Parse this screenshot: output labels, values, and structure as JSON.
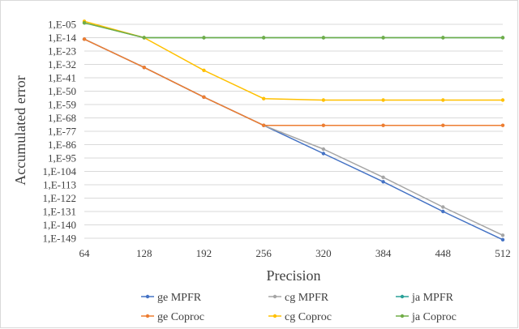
{
  "chart_data": {
    "type": "line",
    "title": "",
    "xlabel": "Precision",
    "ylabel": "Accumulated error",
    "y_scale": "log",
    "grid": true,
    "legend_position": "bottom",
    "x": [
      64,
      128,
      192,
      256,
      320,
      384,
      448,
      512
    ],
    "x_tick_labels": [
      "64",
      "128",
      "192",
      "256",
      "320",
      "384",
      "448",
      "512"
    ],
    "y_tick_labels": [
      "1,E-05",
      "1,E-14",
      "1,E-23",
      "1,E-32",
      "1,E-41",
      "1,E-50",
      "1,E-59",
      "1,E-68",
      "1,E-77",
      "1,E-86",
      "1,E-95",
      "1,E-104",
      "1,E-113",
      "1,E-122",
      "1,E-131",
      "1,E-140",
      "1,E-149"
    ],
    "y_tick_exponents": [
      -5,
      -14,
      -23,
      -32,
      -41,
      -50,
      -59,
      -68,
      -77,
      -86,
      -95,
      -104,
      -113,
      -122,
      -131,
      -140,
      -149
    ],
    "y_range_exponent": [
      -149,
      -5
    ],
    "series": [
      {
        "name": "ge MPFR",
        "color": "#4472c4",
        "log10_values": [
          -15,
          -34,
          -54,
          -73,
          -92,
          -111,
          -131,
          -150
        ]
      },
      {
        "name": "cg MPFR",
        "color": "#a5a5a5",
        "log10_values": [
          -15,
          -34,
          -54,
          -73,
          -89,
          -108,
          -128,
          -147
        ]
      },
      {
        "name": "ja MPFR",
        "color": "#2aa198",
        "log10_values": [
          -4,
          -14,
          -14,
          -14,
          -14,
          -14,
          -14,
          -14
        ]
      },
      {
        "name": "ge Coproc",
        "color": "#ed7d31",
        "log10_values": [
          -15,
          -34,
          -54,
          -73,
          -73,
          -73,
          -73,
          -73
        ]
      },
      {
        "name": "cg Coproc",
        "color": "#ffc000",
        "log10_values": [
          -3,
          -14,
          -36,
          -55,
          -56,
          -56,
          -56,
          -56
        ]
      },
      {
        "name": "ja Coproc",
        "color": "#70ad47",
        "log10_values": [
          -4,
          -14,
          -14,
          -14,
          -14,
          -14,
          -14,
          -14
        ]
      }
    ]
  }
}
